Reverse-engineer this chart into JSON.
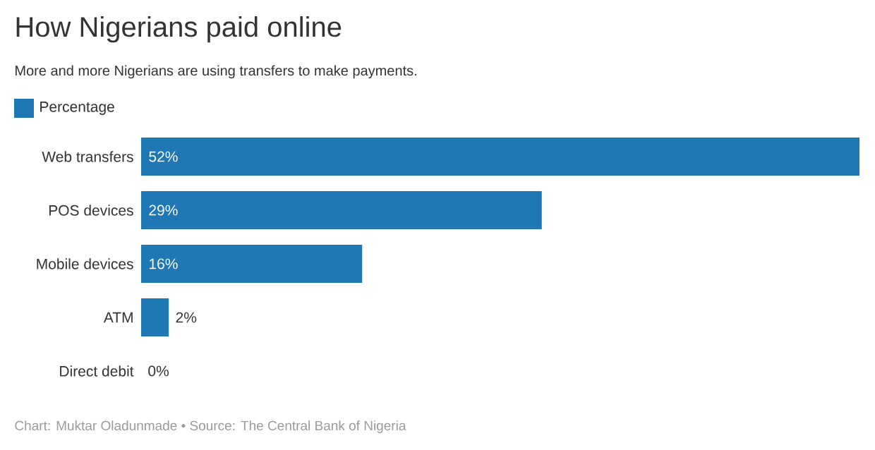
{
  "chart_data": {
    "type": "bar",
    "orientation": "horizontal",
    "title": "How Nigerians paid online",
    "subtitle": "More and more Nigerians are using transfers to make payments.",
    "categories": [
      "Web transfers",
      "POS devices",
      "Mobile devices",
      "ATM",
      "Direct debit"
    ],
    "series": [
      {
        "name": "Percentage",
        "color": "#1f77b4",
        "values": [
          52,
          29,
          16,
          2,
          0
        ],
        "value_labels": [
          "52%",
          "29%",
          "16%",
          "2%",
          "0%"
        ]
      }
    ],
    "xlim": [
      0,
      52
    ],
    "tick_labels": "y",
    "legend": "top left",
    "annotations": [
      "Chart: Muktar Oladunmade • Source: The Central Bank of Nigeria"
    ]
  }
}
